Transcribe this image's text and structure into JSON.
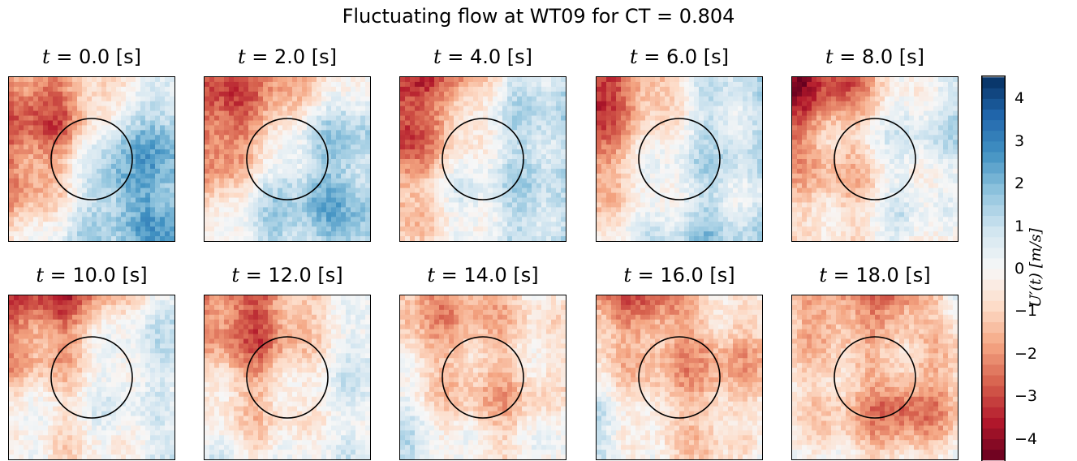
{
  "chart_data": {
    "type": "heatmap",
    "title": "Fluctuating flow at WT09 for CT = 0.804",
    "panels": [
      {
        "t_label": "t = 0.0 [s]",
        "var": "t",
        "value": "0.0",
        "unit": "[s]",
        "pattern": [
          [
            -2.5,
            -2.0,
            -1.0,
            0.5
          ],
          [
            -3.0,
            -2.5,
            1.5,
            2.0
          ],
          [
            -2.5,
            -0.5,
            2.5,
            2.0
          ],
          [
            -1.0,
            0.5,
            1.5,
            2.5
          ]
        ]
      },
      {
        "t_label": "t = 2.0 [s]",
        "var": "t",
        "value": "2.0",
        "unit": "[s]",
        "pattern": [
          [
            -3.0,
            -2.5,
            -1.0,
            0.5
          ],
          [
            -3.0,
            -2.0,
            1.0,
            1.5
          ],
          [
            -2.0,
            0.5,
            2.0,
            1.5
          ],
          [
            -0.5,
            1.0,
            1.5,
            2.0
          ]
        ]
      },
      {
        "t_label": "t = 4.0 [s]",
        "var": "t",
        "value": "4.0",
        "unit": "[s]",
        "pattern": [
          [
            -3.5,
            -2.5,
            0.5,
            1.0
          ],
          [
            -3.5,
            -1.0,
            1.0,
            1.5
          ],
          [
            -2.0,
            0.0,
            1.0,
            1.0
          ],
          [
            -1.0,
            0.0,
            1.0,
            1.5
          ]
        ]
      },
      {
        "t_label": "t = 6.0 [s]",
        "var": "t",
        "value": "6.0",
        "unit": "[s]",
        "pattern": [
          [
            -3.5,
            -2.0,
            0.5,
            1.0
          ],
          [
            -3.0,
            -0.5,
            1.0,
            1.0
          ],
          [
            -1.5,
            0.0,
            1.0,
            0.5
          ],
          [
            -0.5,
            0.5,
            1.5,
            1.0
          ]
        ]
      },
      {
        "t_label": "t = 8.0 [s]",
        "var": "t",
        "value": "8.0",
        "unit": "[s]",
        "pattern": [
          [
            -4.0,
            -3.0,
            0.0,
            0.5
          ],
          [
            -2.5,
            -1.0,
            0.5,
            1.0
          ],
          [
            -1.0,
            -1.5,
            0.5,
            0.0
          ],
          [
            -0.5,
            -0.5,
            0.5,
            -0.5
          ]
        ]
      },
      {
        "t_label": "t = 10.0 [s]",
        "var": "t",
        "value": "10.0",
        "unit": "[s]",
        "pattern": [
          [
            -3.0,
            -3.5,
            -1.0,
            0.5
          ],
          [
            -2.0,
            -1.5,
            0.5,
            1.0
          ],
          [
            -0.5,
            -0.5,
            0.5,
            0.0
          ],
          [
            0.5,
            -0.5,
            0.0,
            1.0
          ]
        ]
      },
      {
        "t_label": "t = 12.0 [s]",
        "var": "t",
        "value": "12.0",
        "unit": "[s]",
        "pattern": [
          [
            -2.5,
            -3.0,
            -1.0,
            0.0
          ],
          [
            -1.5,
            -2.5,
            -0.5,
            1.0
          ],
          [
            -0.5,
            -1.0,
            0.0,
            0.5
          ],
          [
            0.5,
            -0.5,
            0.0,
            0.5
          ]
        ]
      },
      {
        "t_label": "t = 14.0 [s]",
        "var": "t",
        "value": "14.0",
        "unit": "[s]",
        "pattern": [
          [
            -1.5,
            -2.0,
            -1.0,
            0.0
          ],
          [
            -1.0,
            -1.5,
            -1.0,
            -0.5
          ],
          [
            0.5,
            -1.0,
            -1.5,
            0.0
          ],
          [
            1.0,
            0.0,
            -0.5,
            0.5
          ]
        ]
      },
      {
        "t_label": "t = 16.0 [s]",
        "var": "t",
        "value": "16.0",
        "unit": "[s]",
        "pattern": [
          [
            -2.0,
            -3.0,
            -0.5,
            0.0
          ],
          [
            -1.0,
            -1.5,
            -2.0,
            -1.5
          ],
          [
            0.5,
            -1.0,
            -1.5,
            -0.5
          ],
          [
            1.0,
            0.0,
            -1.0,
            0.5
          ]
        ]
      },
      {
        "t_label": "t = 18.0 [s]",
        "var": "t",
        "value": "18.0",
        "unit": "[s]",
        "pattern": [
          [
            -1.5,
            -2.5,
            -3.0,
            0.0
          ],
          [
            -1.0,
            -1.0,
            -0.5,
            -1.0
          ],
          [
            -0.5,
            -1.5,
            -3.0,
            -1.5
          ],
          [
            0.0,
            -0.5,
            -1.0,
            0.0
          ]
        ]
      }
    ],
    "colorbar": {
      "label": "U′(t) [m/s]",
      "range": [
        -4.5,
        4.5
      ],
      "ticks": [
        "4",
        "3",
        "2",
        "1",
        "0",
        "−1",
        "−2",
        "−3",
        "−4"
      ],
      "tick_values": [
        4,
        3,
        2,
        1,
        0,
        -1,
        -2,
        -3,
        -4
      ],
      "colormap": "RdBu_r",
      "negative_color": "#67001f",
      "zero_color": "#f7f7f7",
      "positive_color": "#053061"
    },
    "grid": false,
    "rotor_outline": "circle"
  }
}
